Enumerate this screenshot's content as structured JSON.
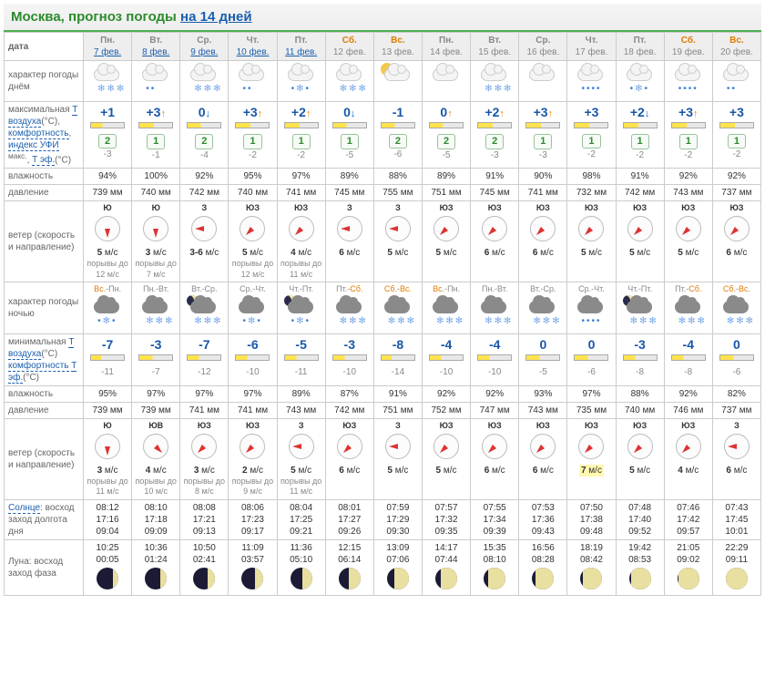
{
  "header": {
    "city": "Москва, прогноз погоды",
    "link": "на 14 дней"
  },
  "rowLabels": {
    "date": "дата",
    "wxDay": "характер погоды днём",
    "tmax": "максимальная <a>Т воздуха</a>(°С), <a>комфортность</a>, <a>индекс УФИ</a> <sup>макс.</sup>, <a>Т эф.</a>(°С)",
    "hum": "влажность",
    "pres": "давление",
    "wind": "ветер (скорость и направление)",
    "wxNight": "характер погоды ночью",
    "tmin": "минимальная <a>Т воздуха</a>(°С) <a>комфортность</a> <a>Т эф.</a>(°С)",
    "humN": "влажность",
    "presN": "давление",
    "windN": "ветер (скорость и направление)",
    "sun": "<a>Солнце</a>: восход заход долгота дня",
    "moon": "Луна: восход заход фаза"
  },
  "colors": {
    "weekend": "#e07b00",
    "link": "#1a5fad",
    "temp": "#1756a9",
    "arrowUp": "#f08000",
    "arrowDown": "#006ad0"
  },
  "days": [
    {
      "dow": "Пн.",
      "date": "7 фев.",
      "link": true,
      "weekend": false,
      "wxDay": "snowlight",
      "tmax": "+1",
      "arr": "",
      "bar": 35,
      "uv": "2",
      "teff": "-3",
      "hum": "94%",
      "pres": "739 мм",
      "windDir": "Ю",
      "windDeg": 180,
      "windSp": "5 м/с",
      "windG": "порывы до 12 м/с",
      "nightLbl": "Вс.-Пн.",
      "nightWe": [
        true,
        false
      ],
      "wxNight": "sleet",
      "tmin": "-7",
      "barN": 30,
      "teffN": "-11",
      "humN": "95%",
      "presN": "739 мм",
      "windDirN": "Ю",
      "windDegN": 180,
      "windSpN": "3 м/с",
      "windGN": "порывы до 11 м/с",
      "sun": "08:12\n17:16\n09:04",
      "moon": "10:25\n00:05",
      "phase": 25
    },
    {
      "dow": "Вт.",
      "date": "8 фев.",
      "link": true,
      "weekend": false,
      "wxDay": "rainlight",
      "tmax": "+3",
      "arr": "up",
      "bar": 45,
      "uv": "1",
      "teff": "-1",
      "hum": "100%",
      "pres": "740 мм",
      "windDir": "Ю",
      "windDeg": 180,
      "windSp": "3 м/с",
      "windG": "порывы до 7 м/с",
      "nightLbl": "Пн.-Вт.",
      "nightWe": [
        false,
        false
      ],
      "wxNight": "snow",
      "tmin": "-3",
      "barN": 40,
      "teffN": "-7",
      "humN": "97%",
      "presN": "739 мм",
      "windDirN": "ЮВ",
      "windDegN": 135,
      "windSpN": "4 м/с",
      "windGN": "порывы до 10 м/с",
      "sun": "08:10\n17:18\n09:09",
      "moon": "10:36\n01:24",
      "phase": 30
    },
    {
      "dow": "Ср.",
      "date": "9 фев.",
      "link": true,
      "weekend": false,
      "wxDay": "snowlight",
      "tmax": "0",
      "arr": "down",
      "bar": 40,
      "uv": "2",
      "teff": "-4",
      "hum": "92%",
      "pres": "742 мм",
      "windDir": "З",
      "windDeg": 270,
      "windSp": "3-6 м/с",
      "windG": "",
      "nightLbl": "Вт.-Ср.",
      "nightWe": [
        false,
        false
      ],
      "wxNight": "moonsnow",
      "tmin": "-7",
      "barN": 35,
      "teffN": "-12",
      "humN": "97%",
      "presN": "741 мм",
      "windDirN": "ЮЗ",
      "windDegN": 225,
      "windSpN": "3 м/с",
      "windGN": "порывы до 8 м/с",
      "sun": "08:08\n17:21\n09:13",
      "moon": "10:50\n02:41",
      "phase": 35
    },
    {
      "dow": "Чт.",
      "date": "10 фев.",
      "link": true,
      "weekend": false,
      "wxDay": "rainlight",
      "tmax": "+3",
      "arr": "up",
      "bar": 45,
      "uv": "1",
      "teff": "-2",
      "hum": "95%",
      "pres": "740 мм",
      "windDir": "ЮЗ",
      "windDeg": 225,
      "windSp": "5 м/с",
      "windG": "порывы до 12 м/с",
      "nightLbl": "Ср.-Чт.",
      "nightWe": [
        false,
        false
      ],
      "wxNight": "sleet",
      "tmin": "-6",
      "barN": 35,
      "teffN": "-10",
      "humN": "97%",
      "presN": "741 мм",
      "windDirN": "ЮЗ",
      "windDegN": 225,
      "windSpN": "2 м/с",
      "windGN": "порывы до 9 м/с",
      "sun": "08:06\n17:23\n09:17",
      "moon": "11:09\n03:57",
      "phase": 40
    },
    {
      "dow": "Пт.",
      "date": "11 фев.",
      "link": true,
      "weekend": false,
      "wxDay": "sleetheavy",
      "tmax": "+2",
      "arr": "up",
      "bar": 45,
      "uv": "1",
      "teff": "-2",
      "hum": "97%",
      "pres": "741 мм",
      "windDir": "ЮЗ",
      "windDeg": 225,
      "windSp": "4 м/с",
      "windG": "порывы до 11 м/с",
      "nightLbl": "Чт.-Пт.",
      "nightWe": [
        false,
        false
      ],
      "wxNight": "moonsleet",
      "tmin": "-5",
      "barN": 35,
      "teffN": "-11",
      "humN": "89%",
      "presN": "743 мм",
      "windDirN": "З",
      "windDegN": 270,
      "windSpN": "5 м/с",
      "windGN": "порывы до 11 м/с",
      "sun": "08:04\n17:25\n09:21",
      "moon": "11:36\n05:10",
      "phase": 45
    },
    {
      "dow": "Сб.",
      "date": "12 фев.",
      "link": false,
      "weekend": true,
      "wxDay": "snowlight",
      "tmax": "0",
      "arr": "down",
      "bar": 40,
      "uv": "1",
      "teff": "-5",
      "hum": "89%",
      "pres": "745 мм",
      "windDir": "З",
      "windDeg": 270,
      "windSp": "6 м/с",
      "windG": "",
      "nightLbl": "Пт.-Сб.",
      "nightWe": [
        false,
        true
      ],
      "wxNight": "snow",
      "tmin": "-3",
      "barN": 35,
      "teffN": "-10",
      "humN": "87%",
      "presN": "742 мм",
      "windDirN": "ЮЗ",
      "windDegN": 225,
      "windSpN": "6 м/с",
      "windGN": "",
      "sun": "08:01\n17:27\n09:26",
      "moon": "12:15\n06:14",
      "phase": 55
    },
    {
      "dow": "Вс.",
      "date": "13 фев.",
      "link": false,
      "weekend": true,
      "wxDay": "suncloud",
      "tmax": "-1",
      "arr": "",
      "bar": 40,
      "uv": "2",
      "teff": "-6",
      "hum": "88%",
      "pres": "755 мм",
      "windDir": "З",
      "windDeg": 270,
      "windSp": "5 м/с",
      "windG": "",
      "nightLbl": "Сб.-Вс.",
      "nightWe": [
        true,
        true
      ],
      "wxNight": "snow",
      "tmin": "-8",
      "barN": 30,
      "teffN": "-14",
      "humN": "91%",
      "presN": "751 мм",
      "windDirN": "З",
      "windDegN": 270,
      "windSpN": "5 м/с",
      "windGN": "",
      "sun": "07:59\n17:29\n09:30",
      "moon": "13:09\n07:06",
      "phase": 65
    },
    {
      "dow": "Пн.",
      "date": "14 фев.",
      "link": false,
      "weekend": false,
      "wxDay": "overcast",
      "tmax": "0",
      "arr": "up",
      "bar": 40,
      "uv": "2",
      "teff": "-5",
      "hum": "89%",
      "pres": "751 мм",
      "windDir": "ЮЗ",
      "windDeg": 225,
      "windSp": "5 м/с",
      "windG": "",
      "nightLbl": "Вс.-Пн.",
      "nightWe": [
        true,
        false
      ],
      "wxNight": "snow",
      "tmin": "-4",
      "barN": 35,
      "teffN": "-10",
      "humN": "92%",
      "presN": "752 мм",
      "windDirN": "ЮЗ",
      "windDegN": 225,
      "windSpN": "5 м/с",
      "windGN": "",
      "sun": "07:57\n17:32\n09:35",
      "moon": "14:17\n07:44",
      "phase": 75
    },
    {
      "dow": "Вт.",
      "date": "15 фев.",
      "link": false,
      "weekend": false,
      "wxDay": "snowlight",
      "tmax": "+2",
      "arr": "up",
      "bar": 45,
      "uv": "2",
      "teff": "-3",
      "hum": "91%",
      "pres": "745 мм",
      "windDir": "ЮЗ",
      "windDeg": 225,
      "windSp": "6 м/с",
      "windG": "",
      "nightLbl": "Пн.-Вт.",
      "nightWe": [
        false,
        false
      ],
      "wxNight": "snow",
      "tmin": "-4",
      "barN": 35,
      "teffN": "-10",
      "humN": "92%",
      "presN": "747 мм",
      "windDirN": "ЮЗ",
      "windDegN": 225,
      "windSpN": "6 м/с",
      "windGN": "",
      "sun": "07:55\n17:34\n09:39",
      "moon": "15:35\n08:10",
      "phase": 80
    },
    {
      "dow": "Ср.",
      "date": "16 фев.",
      "link": false,
      "weekend": false,
      "wxDay": "overcast",
      "tmax": "+3",
      "arr": "up",
      "bar": 45,
      "uv": "1",
      "teff": "-3",
      "hum": "90%",
      "pres": "741 мм",
      "windDir": "ЮЗ",
      "windDeg": 225,
      "windSp": "6 м/с",
      "windG": "",
      "nightLbl": "Вт.-Ср.",
      "nightWe": [
        false,
        false
      ],
      "wxNight": "snow",
      "tmin": "0",
      "barN": 40,
      "teffN": "-5",
      "humN": "93%",
      "presN": "743 мм",
      "windDirN": "ЮЗ",
      "windDegN": 225,
      "windSpN": "6 м/с",
      "windGN": "",
      "sun": "07:53\n17:36\n09:43",
      "moon": "16:56\n08:28",
      "phase": 85
    },
    {
      "dow": "Чт.",
      "date": "17 фев.",
      "link": false,
      "weekend": false,
      "wxDay": "rainheavy",
      "tmax": "+3",
      "arr": "",
      "bar": 45,
      "uv": "1",
      "teff": "-2",
      "hum": "98%",
      "pres": "732 мм",
      "windDir": "ЮЗ",
      "windDeg": 225,
      "windSp": "5 м/с",
      "windG": "",
      "nightLbl": "Ср.-Чт.",
      "nightWe": [
        false,
        false
      ],
      "wxNight": "rainnight",
      "tmin": "0",
      "barN": 40,
      "teffN": "-6",
      "humN": "97%",
      "presN": "735 мм",
      "windDirN": "ЮЗ",
      "windDegN": 225,
      "windSpN": "7 м/с",
      "windGN": "",
      "hlN": true,
      "sun": "07:50\n17:38\n09:48",
      "moon": "18:19\n08:42",
      "phase": 90
    },
    {
      "dow": "Пт.",
      "date": "18 фев.",
      "link": false,
      "weekend": false,
      "wxDay": "sleetheavy",
      "tmax": "+2",
      "arr": "down",
      "bar": 45,
      "uv": "1",
      "teff": "-2",
      "hum": "91%",
      "pres": "742 мм",
      "windDir": "ЮЗ",
      "windDeg": 225,
      "windSp": "5 м/с",
      "windG": "",
      "nightLbl": "Чт.-Пт.",
      "nightWe": [
        false,
        false
      ],
      "wxNight": "moonsnow",
      "tmin": "-3",
      "barN": 35,
      "teffN": "-8",
      "humN": "88%",
      "presN": "740 мм",
      "windDirN": "ЮЗ",
      "windDegN": 225,
      "windSpN": "5 м/с",
      "windGN": "",
      "sun": "07:48\n17:40\n09:52",
      "moon": "19:42\n08:53",
      "phase": 92
    },
    {
      "dow": "Сб.",
      "date": "19 фев.",
      "link": false,
      "weekend": true,
      "wxDay": "rainheavy",
      "tmax": "+3",
      "arr": "up",
      "bar": 45,
      "uv": "1",
      "teff": "-2",
      "hum": "92%",
      "pres": "743 мм",
      "windDir": "ЮЗ",
      "windDeg": 225,
      "windSp": "5 м/с",
      "windG": "",
      "nightLbl": "Пт.-Сб.",
      "nightWe": [
        false,
        true
      ],
      "wxNight": "snow",
      "tmin": "-4",
      "barN": 35,
      "teffN": "-8",
      "humN": "92%",
      "presN": "746 мм",
      "windDirN": "ЮЗ",
      "windDegN": 225,
      "windSpN": "4 м/с",
      "windGN": "",
      "sun": "07:46\n17:42\n09:57",
      "moon": "21:05\n09:02",
      "phase": 95
    },
    {
      "dow": "Вс.",
      "date": "20 фев.",
      "link": false,
      "weekend": true,
      "wxDay": "rainlight",
      "tmax": "+3",
      "arr": "",
      "bar": 45,
      "uv": "1",
      "teff": "-2",
      "hum": "92%",
      "pres": "737 мм",
      "windDir": "ЮЗ",
      "windDeg": 225,
      "windSp": "6 м/с",
      "windG": "",
      "nightLbl": "Сб.-Вс.",
      "nightWe": [
        true,
        true
      ],
      "wxNight": "snow",
      "tmin": "0",
      "barN": 40,
      "teffN": "-6",
      "humN": "82%",
      "presN": "737 мм",
      "windDirN": "З",
      "windDegN": 270,
      "windSpN": "6 м/с",
      "windGN": "",
      "sun": "07:43\n17:45\n10:01",
      "moon": "22:29\n09:11",
      "phase": 98
    }
  ]
}
